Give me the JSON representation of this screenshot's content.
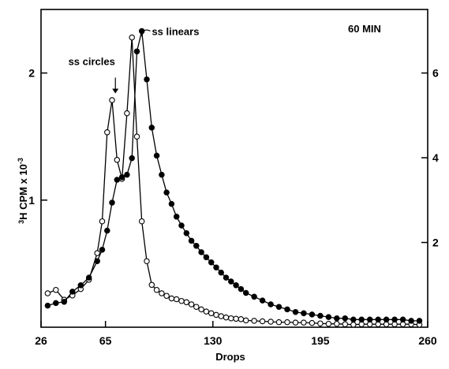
{
  "chart_data": {
    "type": "line",
    "title": "60 MIN",
    "xlabel": "Drops",
    "ylabel_left_main": "H CPM x 10",
    "ylabel_left_sup_prefix": "3",
    "ylabel_left_sup_exp": "-3",
    "x_ticks": [
      "26",
      "65",
      "130",
      "195",
      "260"
    ],
    "x_tick_values": [
      26,
      65,
      130,
      195,
      260
    ],
    "xlim": [
      26,
      260
    ],
    "y_left_ticks": [
      "1",
      "2"
    ],
    "y_left_tick_values": [
      1,
      2
    ],
    "y_left_lim": [
      0,
      2.5
    ],
    "y_right_ticks": [
      "2",
      "4",
      "6"
    ],
    "y_right_tick_values": [
      2,
      4,
      6
    ],
    "y_right_lim": [
      0,
      7.5
    ],
    "annotations": [
      {
        "text": "ss circles",
        "x": 71,
        "y": 1.79
      },
      {
        "text": "ss linears",
        "x": 84,
        "y": 2.33
      }
    ],
    "series": [
      {
        "marker": "open-circle",
        "axis": "right",
        "x": [
          30,
          35,
          40,
          45,
          50,
          55,
          60,
          63,
          66,
          69,
          72,
          75,
          78,
          81,
          84,
          87,
          90,
          93,
          96,
          99,
          102,
          105,
          108,
          111,
          114,
          117,
          120,
          123,
          126,
          129,
          132,
          135,
          138,
          141,
          144,
          147,
          150,
          155,
          160,
          165,
          170,
          175,
          180,
          185,
          190,
          195,
          200,
          205,
          210,
          215,
          220,
          225,
          230,
          235,
          240,
          245,
          250,
          255
        ],
        "y": [
          0.8,
          0.88,
          0.65,
          0.75,
          0.9,
          1.12,
          1.75,
          2.5,
          4.6,
          5.36,
          3.95,
          3.5,
          5.05,
          6.84,
          4.5,
          2.5,
          1.56,
          1.0,
          0.88,
          0.8,
          0.74,
          0.68,
          0.66,
          0.62,
          0.59,
          0.54,
          0.48,
          0.42,
          0.37,
          0.33,
          0.29,
          0.26,
          0.23,
          0.21,
          0.2,
          0.19,
          0.16,
          0.15,
          0.14,
          0.13,
          0.12,
          0.12,
          0.11,
          0.11,
          0.1,
          0.09,
          0.08,
          0.08,
          0.07,
          0.06,
          0.07,
          0.07,
          0.07,
          0.07,
          0.07,
          0.07,
          0.07,
          0.06
        ]
      },
      {
        "marker": "filled-circle",
        "axis": "left",
        "x": [
          30,
          35,
          40,
          45,
          50,
          55,
          60,
          63,
          66,
          69,
          72,
          75,
          78,
          81,
          84,
          87,
          90,
          93,
          96,
          99,
          102,
          105,
          108,
          111,
          114,
          117,
          120,
          123,
          126,
          129,
          132,
          135,
          138,
          141,
          144,
          147,
          150,
          155,
          160,
          165,
          170,
          175,
          180,
          185,
          190,
          195,
          200,
          205,
          210,
          215,
          220,
          225,
          230,
          235,
          240,
          245,
          250,
          255
        ],
        "y": [
          0.17,
          0.19,
          0.2,
          0.28,
          0.33,
          0.39,
          0.52,
          0.61,
          0.76,
          0.98,
          1.16,
          1.18,
          1.2,
          1.33,
          2.17,
          2.33,
          1.95,
          1.57,
          1.35,
          1.2,
          1.06,
          0.97,
          0.87,
          0.8,
          0.74,
          0.68,
          0.64,
          0.59,
          0.55,
          0.51,
          0.47,
          0.43,
          0.39,
          0.36,
          0.33,
          0.3,
          0.27,
          0.24,
          0.21,
          0.18,
          0.16,
          0.14,
          0.12,
          0.11,
          0.1,
          0.09,
          0.08,
          0.07,
          0.07,
          0.06,
          0.06,
          0.06,
          0.06,
          0.06,
          0.06,
          0.06,
          0.05,
          0.05
        ]
      }
    ]
  }
}
